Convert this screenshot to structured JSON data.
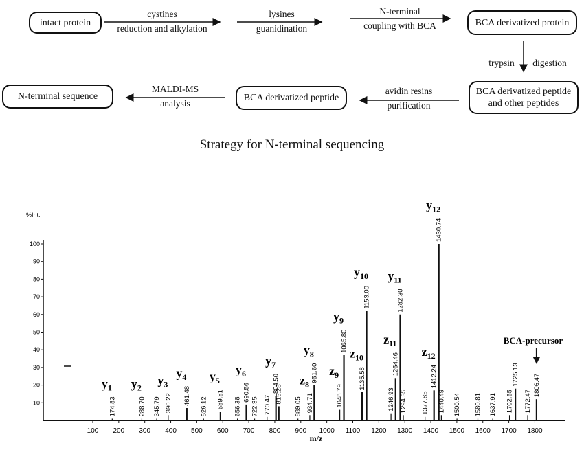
{
  "diagram": {
    "nodes": [
      "intact protein",
      "BCA derivatized protein",
      "BCA derivatized peptide and other peptides",
      "BCA derivatized peptide",
      "N-terminal sequence"
    ],
    "edges": [
      {
        "above": "cystines",
        "below": "reduction and alkylation"
      },
      {
        "above": "lysines",
        "below": "guanidination"
      },
      {
        "above": "N-terminal",
        "below": "coupling with BCA"
      },
      {
        "left": "trypsin",
        "right": "digestion"
      },
      {
        "above": "avidin resins",
        "below": "purification"
      },
      {
        "above": "MALDI-MS",
        "below": "analysis"
      }
    ],
    "title": "Strategy for N-terminal sequencing"
  },
  "chart_data": {
    "type": "bar",
    "xlabel": "m/z",
    "ylabel": "%Int.",
    "xlim": [
      0,
      1850
    ],
    "ylim": [
      0,
      100
    ],
    "xticks": [
      100,
      200,
      300,
      400,
      500,
      600,
      700,
      800,
      900,
      1000,
      1100,
      1200,
      1300,
      1400,
      1500,
      1600,
      1700,
      1800
    ],
    "yticks": [
      10,
      20,
      30,
      40,
      50,
      60,
      70,
      80,
      90,
      100
    ],
    "peaks": [
      {
        "mz": 174.83,
        "int": 1
      },
      {
        "mz": 288.7,
        "int": 1
      },
      {
        "mz": 345.79,
        "int": 1
      },
      {
        "mz": 390.22,
        "int": 3
      },
      {
        "mz": 461.48,
        "int": 7
      },
      {
        "mz": 526.12,
        "int": 1
      },
      {
        "mz": 589.81,
        "int": 5
      },
      {
        "mz": 656.38,
        "int": 1
      },
      {
        "mz": 690.56,
        "int": 9
      },
      {
        "mz": 722.35,
        "int": 1
      },
      {
        "mz": 770.47,
        "int": 2
      },
      {
        "mz": 804.5,
        "int": 14
      },
      {
        "mz": 815.28,
        "int": 8
      },
      {
        "mz": 889.05,
        "int": 1
      },
      {
        "mz": 934.71,
        "int": 3
      },
      {
        "mz": 951.6,
        "int": 20
      },
      {
        "mz": 1048.79,
        "int": 6
      },
      {
        "mz": 1065.8,
        "int": 37
      },
      {
        "mz": 1135.58,
        "int": 16
      },
      {
        "mz": 1153.0,
        "int": 62
      },
      {
        "mz": 1246.93,
        "int": 4
      },
      {
        "mz": 1264.46,
        "int": 24
      },
      {
        "mz": 1282.3,
        "int": 60
      },
      {
        "mz": 1294.35,
        "int": 3
      },
      {
        "mz": 1377.85,
        "int": 2
      },
      {
        "mz": 1412.24,
        "int": 17
      },
      {
        "mz": 1430.74,
        "int": 100
      },
      {
        "mz": 1440.49,
        "int": 3
      },
      {
        "mz": 1500.54,
        "int": 1
      },
      {
        "mz": 1580.81,
        "int": 1
      },
      {
        "mz": 1637.91,
        "int": 1
      },
      {
        "mz": 1702.55,
        "int": 3
      },
      {
        "mz": 1725.13,
        "int": 18
      },
      {
        "mz": 1772.47,
        "int": 3
      },
      {
        "mz": 1806.47,
        "int": 12
      }
    ],
    "ion_labels": [
      {
        "ion": "y",
        "n": "1",
        "mz": 174.83
      },
      {
        "ion": "y",
        "n": "2",
        "mz": 288.7
      },
      {
        "ion": "y",
        "n": "3",
        "mz": 390.22
      },
      {
        "ion": "y",
        "n": "4",
        "mz": 461.48
      },
      {
        "ion": "y",
        "n": "5",
        "mz": 589.81
      },
      {
        "ion": "y",
        "n": "6",
        "mz": 690.56
      },
      {
        "ion": "y",
        "n": "7",
        "mz": 804.5
      },
      {
        "ion": "y",
        "n": "8",
        "mz": 951.6
      },
      {
        "ion": "z",
        "n": "8",
        "mz": 934.71
      },
      {
        "ion": "z",
        "n": "9",
        "mz": 1048.79
      },
      {
        "ion": "y",
        "n": "9",
        "mz": 1065.8
      },
      {
        "ion": "z",
        "n": "10",
        "mz": 1135.58
      },
      {
        "ion": "y",
        "n": "10",
        "mz": 1153.0
      },
      {
        "ion": "z",
        "n": "11",
        "mz": 1264.46
      },
      {
        "ion": "y",
        "n": "11",
        "mz": 1282.3
      },
      {
        "ion": "z",
        "n": "12",
        "mz": 1412.24
      },
      {
        "ion": "y",
        "n": "12",
        "mz": 1430.74
      }
    ],
    "annotation": "BCA-precursor",
    "grid": false
  }
}
